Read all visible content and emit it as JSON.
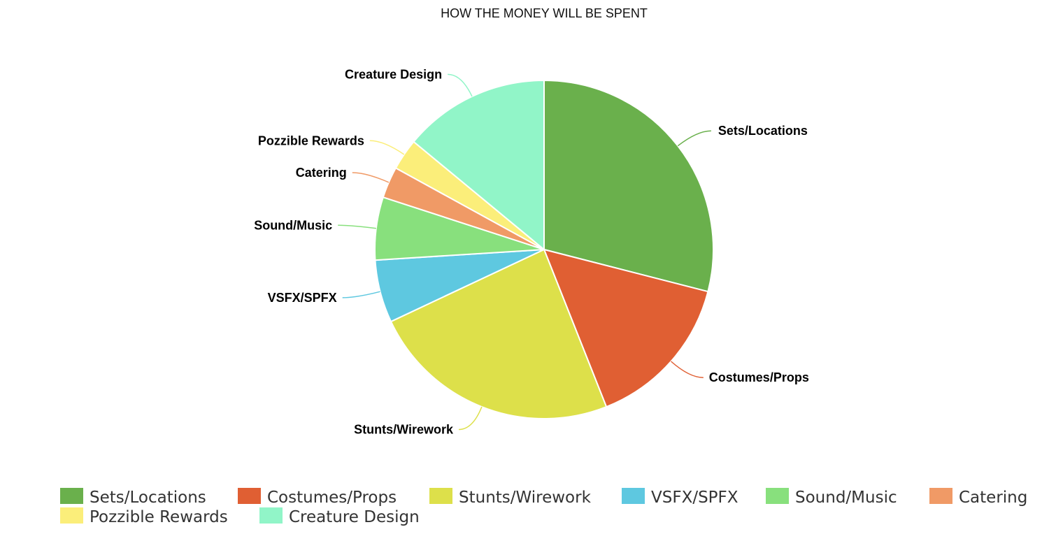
{
  "chart_data": {
    "type": "pie",
    "title": "HOW THE MONEY WILL BE SPENT",
    "unit": "%",
    "slices": [
      {
        "label": "Sets/Locations",
        "value": 29,
        "color": "#6ab04c"
      },
      {
        "label": "Costumes/Props",
        "value": 15,
        "color": "#e05f33"
      },
      {
        "label": "Stunts/Wirework",
        "value": 24,
        "color": "#dde04a"
      },
      {
        "label": "VSFX/SPFX",
        "value": 6,
        "color": "#5ec8e0"
      },
      {
        "label": "Sound/Music",
        "value": 6,
        "color": "#88e07d"
      },
      {
        "label": "Catering",
        "value": 3,
        "color": "#f09a66"
      },
      {
        "label": "Pozzible Rewards",
        "value": 3,
        "color": "#fbee7a"
      },
      {
        "label": "Creature Design",
        "value": 14,
        "color": "#91f5c8"
      }
    ],
    "legend": {
      "position": "bottom"
    }
  }
}
